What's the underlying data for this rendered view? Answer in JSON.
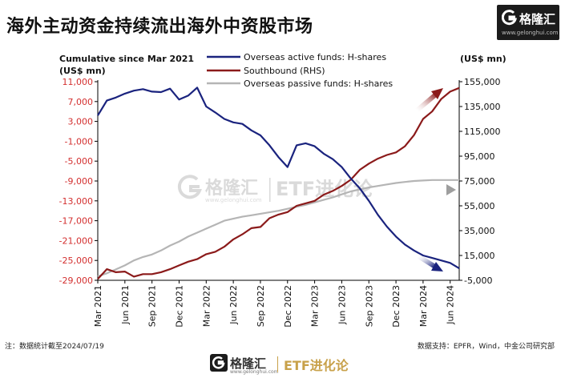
{
  "header": {
    "title": "海外主动资金持续流出海外中资股市场",
    "brand_name": "格隆汇",
    "brand_url": "www.gelonghui.com"
  },
  "watermark": {
    "brand_name": "格隆汇",
    "brand_url": "www.gelonghui.com",
    "program": "ETF进化论"
  },
  "footer": {
    "note": "注：数据统计截至2024/07/19",
    "source": "数据支持：EPFR，Wind，中金公司研究部",
    "brand_name": "格隆汇",
    "brand_url": "www.gelonghui.com",
    "program": "ETF进化论"
  },
  "colors": {
    "active": "#1a237e",
    "southbound": "#8b1a1a",
    "passive": "#b5b5b5",
    "left_axis_text": "#d32f2f",
    "watermark": "#bdbdbd"
  },
  "chart_data": {
    "type": "line",
    "title": "Cumulative since Mar 2021",
    "ylabel": "(US$ mn)",
    "y2label": "(US$ mn)",
    "ylim": [
      -29000,
      11000
    ],
    "yticks": [
      "11,000",
      "7,000",
      "3,000",
      "-1,000",
      "-5,000",
      "-9,000",
      "-13,000",
      "-17,000",
      "-21,000",
      "-25,000",
      "-29,000"
    ],
    "y2lim": [
      -5000,
      155000
    ],
    "y2ticks": [
      "155,000",
      "135,000",
      "115,000",
      "95,000",
      "75,000",
      "55,000",
      "35,000",
      "15,000",
      "-5,000"
    ],
    "xlim": [
      "2021-03",
      "2024-07"
    ],
    "xticks": [
      "Mar 2021",
      "Jun 2021",
      "Sep 2021",
      "Dec 2021",
      "Mar 2022",
      "Jun 2022",
      "Sep 2022",
      "Dec 2022",
      "Mar 2023",
      "Jun 2023",
      "Sep 2023",
      "Dec 2023",
      "Mar 2024",
      "Jun 2024"
    ],
    "grid": false,
    "legend_position": "top-center",
    "series": [
      {
        "name": "Overseas active funds: H-shares",
        "axis": "left",
        "points": [
          [
            "2021-03",
            4200
          ],
          [
            "2021-04",
            7200
          ],
          [
            "2021-05",
            7800
          ],
          [
            "2021-06",
            8600
          ],
          [
            "2021-07",
            9200
          ],
          [
            "2021-08",
            9500
          ],
          [
            "2021-09",
            9000
          ],
          [
            "2021-10",
            8900
          ],
          [
            "2021-11",
            9600
          ],
          [
            "2021-12",
            7400
          ],
          [
            "2022-01",
            8200
          ],
          [
            "2022-02",
            9800
          ],
          [
            "2022-03",
            6000
          ],
          [
            "2022-04",
            4800
          ],
          [
            "2022-05",
            3500
          ],
          [
            "2022-06",
            2800
          ],
          [
            "2022-07",
            2500
          ],
          [
            "2022-08",
            1200
          ],
          [
            "2022-09",
            200
          ],
          [
            "2022-10",
            -1800
          ],
          [
            "2022-11",
            -4200
          ],
          [
            "2022-12",
            -6200
          ],
          [
            "2023-01",
            -1800
          ],
          [
            "2023-02",
            -1400
          ],
          [
            "2023-03",
            -2000
          ],
          [
            "2023-04",
            -3500
          ],
          [
            "2023-05",
            -4600
          ],
          [
            "2023-06",
            -6200
          ],
          [
            "2023-07",
            -8500
          ],
          [
            "2023-08",
            -10500
          ],
          [
            "2023-09",
            -13000
          ],
          [
            "2023-10",
            -15800
          ],
          [
            "2023-11",
            -18200
          ],
          [
            "2023-12",
            -20200
          ],
          [
            "2024-01",
            -21800
          ],
          [
            "2024-02",
            -23000
          ],
          [
            "2024-03",
            -24000
          ],
          [
            "2024-04",
            -24500
          ],
          [
            "2024-05",
            -25000
          ],
          [
            "2024-06",
            -25500
          ],
          [
            "2024-07",
            -26600
          ]
        ]
      },
      {
        "name": "Southbound (RHS)",
        "axis": "right",
        "points": [
          [
            "2021-03",
            -4000
          ],
          [
            "2021-04",
            4000
          ],
          [
            "2021-05",
            1500
          ],
          [
            "2021-06",
            2000
          ],
          [
            "2021-07",
            -2000
          ],
          [
            "2021-08",
            0
          ],
          [
            "2021-09",
            0
          ],
          [
            "2021-10",
            1500
          ],
          [
            "2021-11",
            4000
          ],
          [
            "2021-12",
            7000
          ],
          [
            "2022-01",
            10000
          ],
          [
            "2022-02",
            12000
          ],
          [
            "2022-03",
            16000
          ],
          [
            "2022-04",
            18000
          ],
          [
            "2022-05",
            22000
          ],
          [
            "2022-06",
            28000
          ],
          [
            "2022-07",
            32000
          ],
          [
            "2022-08",
            37000
          ],
          [
            "2022-09",
            38000
          ],
          [
            "2022-10",
            45000
          ],
          [
            "2022-11",
            48000
          ],
          [
            "2022-12",
            50000
          ],
          [
            "2023-01",
            55000
          ],
          [
            "2023-02",
            57000
          ],
          [
            "2023-03",
            59000
          ],
          [
            "2023-04",
            64000
          ],
          [
            "2023-05",
            67000
          ],
          [
            "2023-06",
            71000
          ],
          [
            "2023-07",
            76000
          ],
          [
            "2023-08",
            84000
          ],
          [
            "2023-09",
            89000
          ],
          [
            "2023-10",
            93000
          ],
          [
            "2023-11",
            96000
          ],
          [
            "2023-12",
            98000
          ],
          [
            "2024-01",
            103000
          ],
          [
            "2024-02",
            112000
          ],
          [
            "2024-03",
            125000
          ],
          [
            "2024-04",
            131000
          ],
          [
            "2024-05",
            141000
          ],
          [
            "2024-06",
            147000
          ],
          [
            "2024-07",
            150000
          ]
        ]
      },
      {
        "name": "Overseas passive funds: H-shares",
        "axis": "left",
        "points": [
          [
            "2021-03",
            -28200
          ],
          [
            "2021-04",
            -27600
          ],
          [
            "2021-05",
            -26800
          ],
          [
            "2021-06",
            -26000
          ],
          [
            "2021-07",
            -25000
          ],
          [
            "2021-08",
            -24300
          ],
          [
            "2021-09",
            -23800
          ],
          [
            "2021-10",
            -23000
          ],
          [
            "2021-11",
            -22000
          ],
          [
            "2021-12",
            -21200
          ],
          [
            "2022-01",
            -20200
          ],
          [
            "2022-02",
            -19400
          ],
          [
            "2022-03",
            -18600
          ],
          [
            "2022-04",
            -17800
          ],
          [
            "2022-05",
            -17000
          ],
          [
            "2022-06",
            -16600
          ],
          [
            "2022-07",
            -16200
          ],
          [
            "2022-08",
            -15900
          ],
          [
            "2022-09",
            -15600
          ],
          [
            "2022-10",
            -15300
          ],
          [
            "2022-11",
            -15000
          ],
          [
            "2022-12",
            -14600
          ],
          [
            "2023-01",
            -14200
          ],
          [
            "2023-02",
            -13800
          ],
          [
            "2023-03",
            -13300
          ],
          [
            "2023-04",
            -12800
          ],
          [
            "2023-05",
            -12300
          ],
          [
            "2023-06",
            -11700
          ],
          [
            "2023-07",
            -11100
          ],
          [
            "2023-08",
            -10700
          ],
          [
            "2023-09",
            -10300
          ],
          [
            "2023-10",
            -10000
          ],
          [
            "2023-11",
            -9700
          ],
          [
            "2023-12",
            -9400
          ],
          [
            "2024-01",
            -9200
          ],
          [
            "2024-02",
            -9000
          ],
          [
            "2024-03",
            -8900
          ],
          [
            "2024-04",
            -8800
          ],
          [
            "2024-05",
            -8800
          ],
          [
            "2024-06",
            -8800
          ],
          [
            "2024-07",
            -8800
          ]
        ]
      }
    ]
  }
}
